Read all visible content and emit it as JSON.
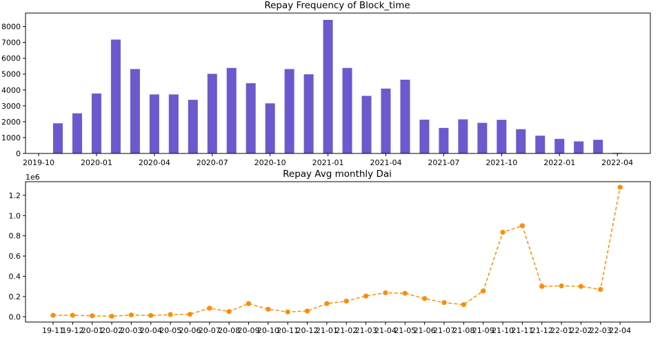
{
  "chart_data": [
    {
      "type": "bar",
      "title": "Repay Frequency of Block_time",
      "xlabel": "",
      "ylabel": "",
      "color": "#6a5acd",
      "categories": [
        "2019-11",
        "2019-12",
        "2020-01",
        "2020-02",
        "2020-03",
        "2020-04",
        "2020-05",
        "2020-06",
        "2020-07",
        "2020-08",
        "2020-09",
        "2020-10",
        "2020-11",
        "2020-12",
        "2021-01",
        "2021-02",
        "2021-03",
        "2021-04",
        "2021-05",
        "2021-06",
        "2021-07",
        "2021-08",
        "2021-09",
        "2021-10",
        "2021-11",
        "2021-12",
        "2022-01",
        "2022-02",
        "2022-03",
        "2022-04"
      ],
      "values": [
        1900,
        2530,
        3780,
        7180,
        5320,
        3720,
        3720,
        3380,
        5020,
        5390,
        4430,
        3160,
        5320,
        4990,
        8420,
        5390,
        3630,
        4090,
        4650,
        2130,
        1610,
        2150,
        1930,
        2120,
        1530,
        1120,
        920,
        760,
        860,
        40
      ],
      "ylim": [
        0,
        8850
      ],
      "yticks": [
        0,
        1000,
        2000,
        3000,
        4000,
        5000,
        6000,
        7000,
        8000
      ],
      "ytick_labels": [
        "0",
        "1000",
        "2000",
        "3000",
        "4000",
        "5000",
        "6000",
        "7000",
        "8000"
      ],
      "xticks": [
        {
          "label": "2019-10",
          "month_index": -1
        },
        {
          "label": "2020-01",
          "month_index": 2
        },
        {
          "label": "2020-04",
          "month_index": 5
        },
        {
          "label": "2020-07",
          "month_index": 8
        },
        {
          "label": "2020-10",
          "month_index": 11
        },
        {
          "label": "2021-01",
          "month_index": 14
        },
        {
          "label": "2021-04",
          "month_index": 17
        },
        {
          "label": "2021-07",
          "month_index": 20
        },
        {
          "label": "2021-10",
          "month_index": 23
        },
        {
          "label": "2022-01",
          "month_index": 26
        },
        {
          "label": "2022-04",
          "month_index": 29
        }
      ],
      "grid": false
    },
    {
      "type": "line",
      "title": "Repay Avg monthly Dai",
      "xlabel": "",
      "ylabel": "",
      "color": "#ff8c00",
      "line_style": "dashed",
      "marker": "circle",
      "scale_label": "1e6",
      "categories": [
        "19-11",
        "19-12",
        "20-01",
        "20-02",
        "20-03",
        "20-04",
        "20-05",
        "20-06",
        "20-07",
        "20-08",
        "20-09",
        "20-10",
        "20-11",
        "20-12",
        "21-01",
        "21-02",
        "21-03",
        "21-04",
        "21-05",
        "21-06",
        "21-07",
        "21-08",
        "21-09",
        "21-10",
        "21-11",
        "21-12",
        "22-01",
        "22-02",
        "22-03",
        "22-04"
      ],
      "values": [
        0.015,
        0.015,
        0.01,
        0.005,
        0.018,
        0.013,
        0.022,
        0.025,
        0.085,
        0.052,
        0.13,
        0.075,
        0.048,
        0.057,
        0.13,
        0.155,
        0.205,
        0.237,
        0.232,
        0.18,
        0.14,
        0.12,
        0.255,
        0.835,
        0.9,
        0.3,
        0.305,
        0.3,
        0.27,
        1.28
      ],
      "ylim": [
        -0.052,
        1.335
      ],
      "yticks": [
        0.0,
        0.2,
        0.4,
        0.6,
        0.8,
        1.0,
        1.2
      ],
      "ytick_labels": [
        "0.0",
        "0.2",
        "0.4",
        "0.6",
        "0.8",
        "1.0",
        "1.2"
      ],
      "grid": false
    }
  ]
}
